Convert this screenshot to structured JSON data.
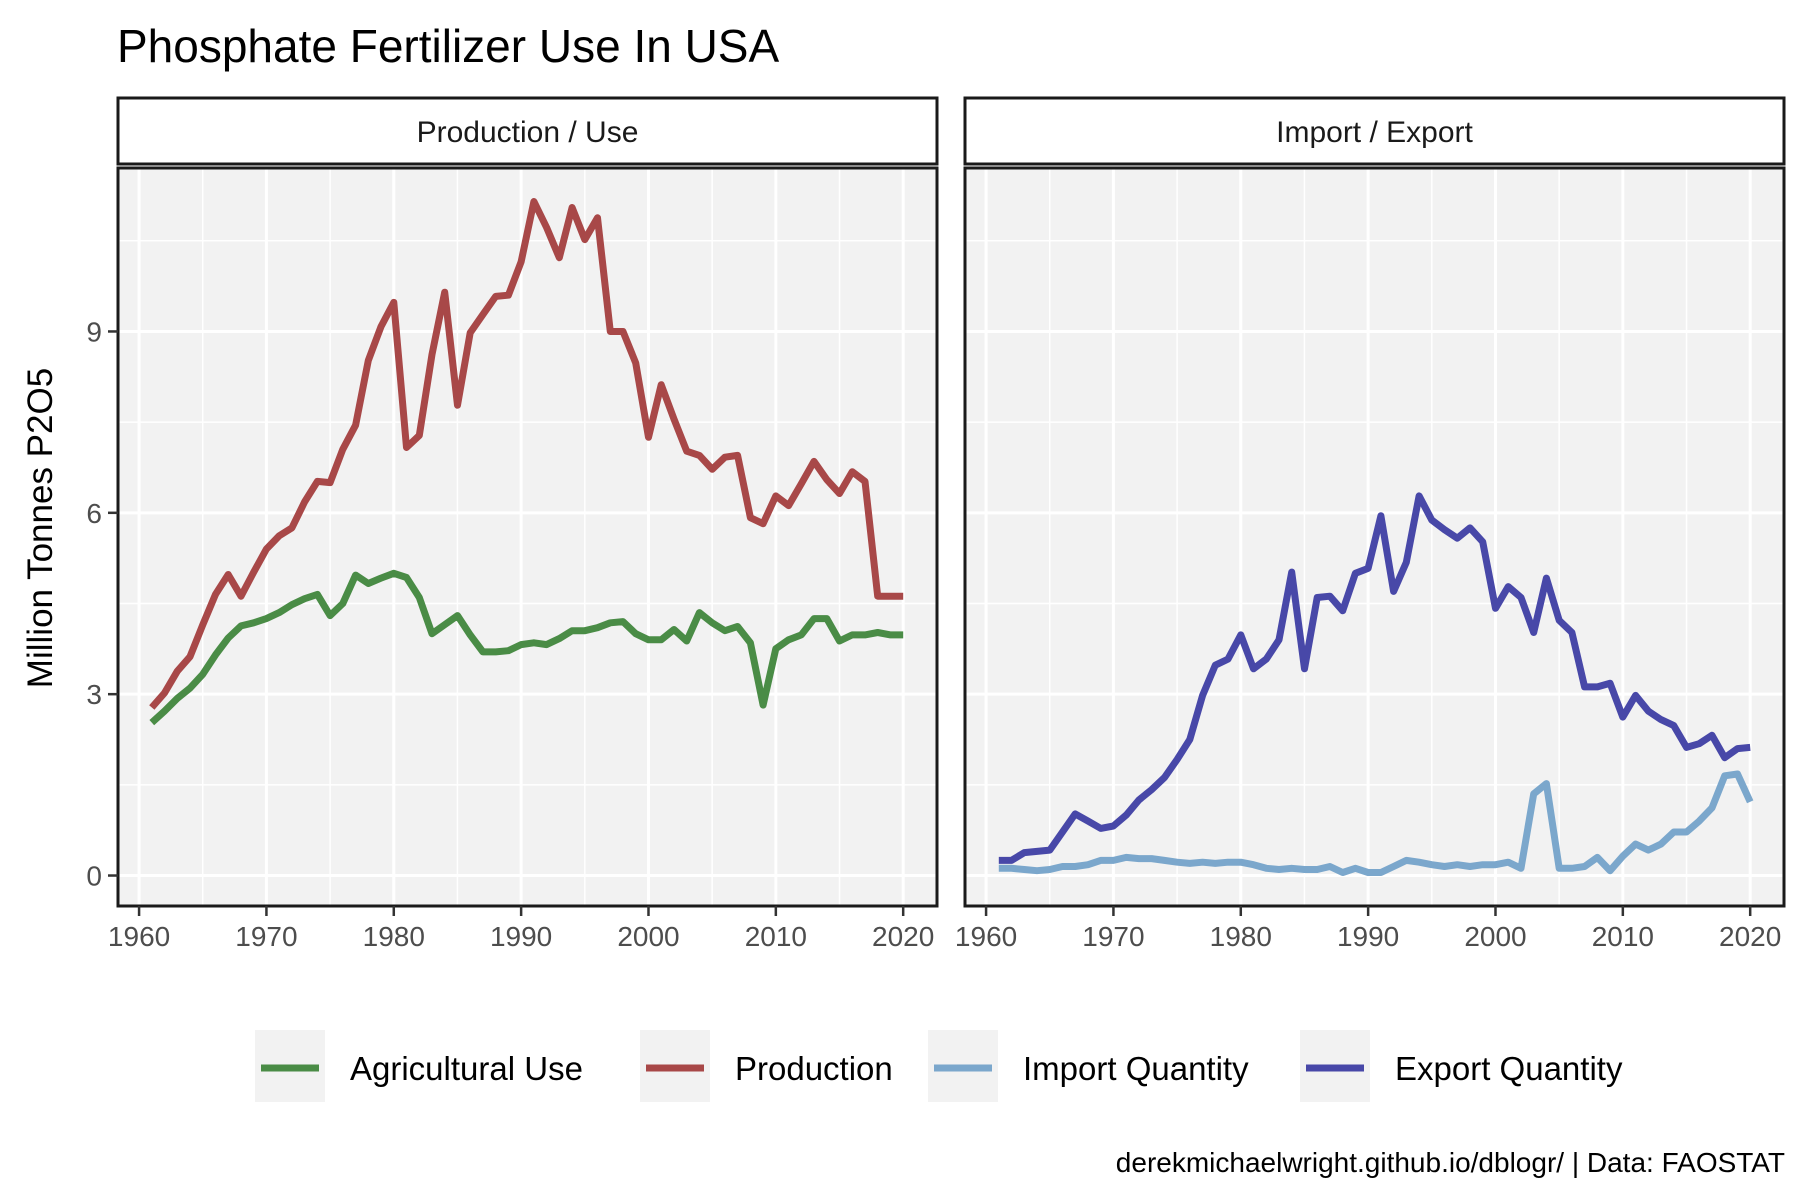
{
  "chart_data": {
    "type": "line",
    "title": "Phosphate Fertilizer Use In USA",
    "ylabel": "Million Tonnes P2O5",
    "xlabel": "",
    "caption": "derekmichaelwright.github.io/dblogr/ | Data: FAOSTAT",
    "xlim": [
      1961,
      2020
    ],
    "ylim": [
      0,
      11.2
    ],
    "x_ticks": [
      1960,
      1970,
      1980,
      1990,
      2000,
      2010,
      2020
    ],
    "y_ticks": [
      0,
      3,
      6,
      9
    ],
    "grid": true,
    "legend_position": "bottom",
    "legend": [
      {
        "name": "Agricultural Use",
        "color": "#4a8c46"
      },
      {
        "name": "Production",
        "color": "#a84848"
      },
      {
        "name": "Import Quantity",
        "color": "#7ba7cc"
      },
      {
        "name": "Export Quantity",
        "color": "#4848a8"
      }
    ],
    "panels": [
      {
        "label": "Production / Use",
        "series": [
          {
            "name": "Agricultural Use",
            "color": "#4a8c46",
            "points": [
              [
                1961,
                2.53
              ],
              [
                1962,
                2.72
              ],
              [
                1963,
                2.93
              ],
              [
                1964,
                3.1
              ],
              [
                1965,
                3.33
              ],
              [
                1966,
                3.65
              ],
              [
                1967,
                3.93
              ],
              [
                1968,
                4.13
              ],
              [
                1969,
                4.18
              ],
              [
                1970,
                4.25
              ],
              [
                1971,
                4.35
              ],
              [
                1972,
                4.48
              ],
              [
                1973,
                4.58
              ],
              [
                1974,
                4.65
              ],
              [
                1975,
                4.3
              ],
              [
                1976,
                4.5
              ],
              [
                1977,
                4.97
              ],
              [
                1978,
                4.83
              ],
              [
                1979,
                4.92
              ],
              [
                1980,
                5.0
              ],
              [
                1981,
                4.93
              ],
              [
                1982,
                4.6
              ],
              [
                1983,
                4.0
              ],
              [
                1984,
                4.15
              ],
              [
                1985,
                4.3
              ],
              [
                1986,
                3.98
              ],
              [
                1987,
                3.7
              ],
              [
                1988,
                3.7
              ],
              [
                1989,
                3.72
              ],
              [
                1990,
                3.82
              ],
              [
                1991,
                3.85
              ],
              [
                1992,
                3.82
              ],
              [
                1993,
                3.92
              ],
              [
                1994,
                4.05
              ],
              [
                1995,
                4.05
              ],
              [
                1996,
                4.1
              ],
              [
                1997,
                4.18
              ],
              [
                1998,
                4.2
              ],
              [
                1999,
                4.0
              ],
              [
                2000,
                3.9
              ],
              [
                2001,
                3.9
              ],
              [
                2002,
                4.07
              ],
              [
                2003,
                3.88
              ],
              [
                2004,
                4.35
              ],
              [
                2005,
                4.18
              ],
              [
                2006,
                4.05
              ],
              [
                2007,
                4.12
              ],
              [
                2008,
                3.85
              ],
              [
                2009,
                2.82
              ],
              [
                2010,
                3.75
              ],
              [
                2011,
                3.9
              ],
              [
                2012,
                3.98
              ],
              [
                2013,
                4.25
              ],
              [
                2014,
                4.25
              ],
              [
                2015,
                3.88
              ],
              [
                2016,
                3.98
              ],
              [
                2017,
                3.98
              ],
              [
                2018,
                4.02
              ],
              [
                2019,
                3.98
              ],
              [
                2020,
                3.98
              ]
            ]
          },
          {
            "name": "Production",
            "color": "#a84848",
            "points": [
              [
                1961,
                2.78
              ],
              [
                1962,
                3.02
              ],
              [
                1963,
                3.38
              ],
              [
                1964,
                3.62
              ],
              [
                1965,
                4.15
              ],
              [
                1966,
                4.65
              ],
              [
                1967,
                4.98
              ],
              [
                1968,
                4.62
              ],
              [
                1969,
                5.02
              ],
              [
                1970,
                5.4
              ],
              [
                1971,
                5.62
              ],
              [
                1972,
                5.75
              ],
              [
                1973,
                6.18
              ],
              [
                1974,
                6.52
              ],
              [
                1975,
                6.5
              ],
              [
                1976,
                7.05
              ],
              [
                1977,
                7.45
              ],
              [
                1978,
                8.52
              ],
              [
                1979,
                9.08
              ],
              [
                1980,
                9.48
              ],
              [
                1981,
                7.08
              ],
              [
                1982,
                7.28
              ],
              [
                1983,
                8.62
              ],
              [
                1984,
                9.65
              ],
              [
                1985,
                7.78
              ],
              [
                1986,
                8.98
              ],
              [
                1987,
                9.28
              ],
              [
                1988,
                9.58
              ],
              [
                1989,
                9.6
              ],
              [
                1990,
                10.15
              ],
              [
                1991,
                11.15
              ],
              [
                1992,
                10.72
              ],
              [
                1993,
                10.22
              ],
              [
                1994,
                11.05
              ],
              [
                1995,
                10.52
              ],
              [
                1996,
                10.88
              ],
              [
                1997,
                9.0
              ],
              [
                1998,
                9.0
              ],
              [
                1999,
                8.48
              ],
              [
                2000,
                7.25
              ],
              [
                2001,
                8.12
              ],
              [
                2002,
                7.55
              ],
              [
                2003,
                7.02
              ],
              [
                2004,
                6.95
              ],
              [
                2005,
                6.72
              ],
              [
                2006,
                6.92
              ],
              [
                2007,
                6.95
              ],
              [
                2008,
                5.92
              ],
              [
                2009,
                5.82
              ],
              [
                2010,
                6.28
              ],
              [
                2011,
                6.12
              ],
              [
                2012,
                6.48
              ],
              [
                2013,
                6.85
              ],
              [
                2014,
                6.55
              ],
              [
                2015,
                6.32
              ],
              [
                2016,
                6.68
              ],
              [
                2017,
                6.52
              ],
              [
                2018,
                4.62
              ],
              [
                2019,
                4.62
              ],
              [
                2020,
                4.62
              ]
            ]
          }
        ]
      },
      {
        "label": "Import / Export",
        "series": [
          {
            "name": "Import Quantity",
            "color": "#7ba7cc",
            "points": [
              [
                1961,
                0.12
              ],
              [
                1962,
                0.12
              ],
              [
                1963,
                0.1
              ],
              [
                1964,
                0.08
              ],
              [
                1965,
                0.1
              ],
              [
                1966,
                0.15
              ],
              [
                1967,
                0.15
              ],
              [
                1968,
                0.18
              ],
              [
                1969,
                0.25
              ],
              [
                1970,
                0.25
              ],
              [
                1971,
                0.3
              ],
              [
                1972,
                0.28
              ],
              [
                1973,
                0.28
              ],
              [
                1974,
                0.25
              ],
              [
                1975,
                0.22
              ],
              [
                1976,
                0.2
              ],
              [
                1977,
                0.22
              ],
              [
                1978,
                0.2
              ],
              [
                1979,
                0.22
              ],
              [
                1980,
                0.22
              ],
              [
                1981,
                0.18
              ],
              [
                1982,
                0.12
              ],
              [
                1983,
                0.1
              ],
              [
                1984,
                0.12
              ],
              [
                1985,
                0.1
              ],
              [
                1986,
                0.1
              ],
              [
                1987,
                0.15
              ],
              [
                1988,
                0.05
              ],
              [
                1989,
                0.12
              ],
              [
                1990,
                0.05
              ],
              [
                1991,
                0.05
              ],
              [
                1992,
                0.15
              ],
              [
                1993,
                0.25
              ],
              [
                1994,
                0.22
              ],
              [
                1995,
                0.18
              ],
              [
                1996,
                0.15
              ],
              [
                1997,
                0.18
              ],
              [
                1998,
                0.15
              ],
              [
                1999,
                0.18
              ],
              [
                2000,
                0.18
              ],
              [
                2001,
                0.22
              ],
              [
                2002,
                0.12
              ],
              [
                2003,
                1.35
              ],
              [
                2004,
                1.52
              ],
              [
                2005,
                0.12
              ],
              [
                2006,
                0.12
              ],
              [
                2007,
                0.15
              ],
              [
                2008,
                0.3
              ],
              [
                2009,
                0.08
              ],
              [
                2010,
                0.32
              ],
              [
                2011,
                0.52
              ],
              [
                2012,
                0.42
              ],
              [
                2013,
                0.52
              ],
              [
                2014,
                0.72
              ],
              [
                2015,
                0.72
              ],
              [
                2016,
                0.9
              ],
              [
                2017,
                1.12
              ],
              [
                2018,
                1.65
              ],
              [
                2019,
                1.68
              ],
              [
                2020,
                1.22
              ]
            ]
          },
          {
            "name": "Export Quantity",
            "color": "#4848a8",
            "points": [
              [
                1961,
                0.25
              ],
              [
                1962,
                0.25
              ],
              [
                1963,
                0.38
              ],
              [
                1964,
                0.4
              ],
              [
                1965,
                0.42
              ],
              [
                1966,
                0.72
              ],
              [
                1967,
                1.02
              ],
              [
                1968,
                0.9
              ],
              [
                1969,
                0.78
              ],
              [
                1970,
                0.82
              ],
              [
                1971,
                1.0
              ],
              [
                1972,
                1.25
              ],
              [
                1973,
                1.42
              ],
              [
                1974,
                1.62
              ],
              [
                1975,
                1.92
              ],
              [
                1976,
                2.25
              ],
              [
                1977,
                2.98
              ],
              [
                1978,
                3.48
              ],
              [
                1979,
                3.58
              ],
              [
                1980,
                3.98
              ],
              [
                1981,
                3.42
              ],
              [
                1982,
                3.58
              ],
              [
                1983,
                3.9
              ],
              [
                1984,
                5.02
              ],
              [
                1985,
                3.42
              ],
              [
                1986,
                4.6
              ],
              [
                1987,
                4.62
              ],
              [
                1988,
                4.38
              ],
              [
                1989,
                5.0
              ],
              [
                1990,
                5.08
              ],
              [
                1991,
                5.95
              ],
              [
                1992,
                4.7
              ],
              [
                1993,
                5.18
              ],
              [
                1994,
                6.28
              ],
              [
                1995,
                5.88
              ],
              [
                1996,
                5.72
              ],
              [
                1997,
                5.58
              ],
              [
                1998,
                5.75
              ],
              [
                1999,
                5.52
              ],
              [
                2000,
                4.42
              ],
              [
                2001,
                4.78
              ],
              [
                2002,
                4.6
              ],
              [
                2003,
                4.02
              ],
              [
                2004,
                4.92
              ],
              [
                2005,
                4.22
              ],
              [
                2006,
                4.02
              ],
              [
                2007,
                3.12
              ],
              [
                2008,
                3.12
              ],
              [
                2009,
                3.18
              ],
              [
                2010,
                2.62
              ],
              [
                2011,
                2.98
              ],
              [
                2012,
                2.72
              ],
              [
                2013,
                2.58
              ],
              [
                2014,
                2.48
              ],
              [
                2015,
                2.12
              ],
              [
                2016,
                2.18
              ],
              [
                2017,
                2.32
              ],
              [
                2018,
                1.95
              ],
              [
                2019,
                2.1
              ],
              [
                2020,
                2.12
              ]
            ]
          }
        ]
      }
    ]
  }
}
